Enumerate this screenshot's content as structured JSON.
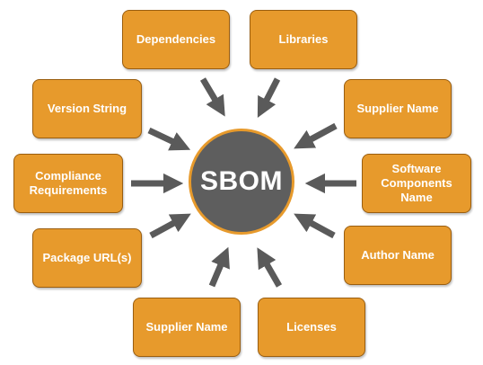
{
  "hub": {
    "label": "SBOM"
  },
  "nodes": [
    {
      "label": "Dependencies"
    },
    {
      "label": "Libraries"
    },
    {
      "label": "Version String"
    },
    {
      "label": "Supplier Name"
    },
    {
      "label": "Compliance Requirements"
    },
    {
      "label": "Software Components Name"
    },
    {
      "label": "Package URL(s)"
    },
    {
      "label": "Author Name"
    },
    {
      "label": "Supplier Name"
    },
    {
      "label": "Licenses"
    }
  ],
  "colors": {
    "box_fill": "#e79a2c",
    "box_border": "#9a5e10",
    "hub_fill": "#5e5e5e",
    "arrow": "#5a5a5a"
  }
}
